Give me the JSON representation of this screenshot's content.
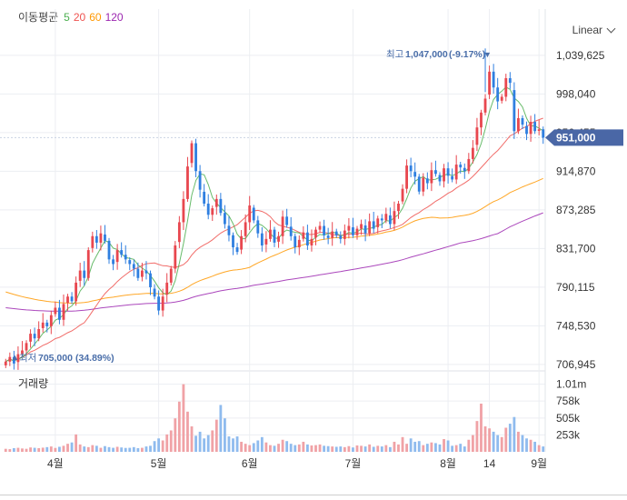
{
  "legend": {
    "label": "이동평균",
    "periods": [
      {
        "text": "5",
        "color": "#4caf50"
      },
      {
        "text": "20",
        "color": "#ef5350"
      },
      {
        "text": "60",
        "color": "#ff9800"
      },
      {
        "text": "120",
        "color": "#9c27b0"
      }
    ]
  },
  "scale_selector": {
    "value": "Linear"
  },
  "price_axis": {
    "ticks": [
      "1,039,625",
      "998,040",
      "956,455",
      "914,870",
      "873,285",
      "831,700",
      "790,115",
      "748,530",
      "706,945"
    ],
    "tick_values": [
      1039625,
      998040,
      956455,
      914870,
      873285,
      831700,
      790115,
      748530,
      706945
    ]
  },
  "current_price": {
    "label": "951,000",
    "value": 951000,
    "color": "#4a67a6"
  },
  "annotations": {
    "high": {
      "prefix": "최고",
      "value": "1,047,000",
      "change": "(-9.17%)",
      "arrow": "▼"
    },
    "low": {
      "prefix": "최저",
      "value": "705,000",
      "change": "(34.89%)",
      "arrow": "▲"
    }
  },
  "volume": {
    "title": "거래량",
    "ticks": [
      "1.01m",
      "758k",
      "505k",
      "253k"
    ],
    "tick_values": [
      1010000,
      758000,
      505000,
      253000
    ]
  },
  "x_axis": {
    "labels": [
      "4월",
      "5월",
      "6월",
      "7월",
      "8월",
      "14",
      "9월"
    ],
    "label_index": [
      12,
      37,
      59,
      84,
      107,
      117,
      129
    ]
  },
  "colors": {
    "up": "#e8474f",
    "down": "#2f7fe0",
    "grid": "#eceef2"
  },
  "chart_data": {
    "type": "candlestick",
    "ylim": [
      700000,
      1060000
    ],
    "series": [
      {
        "name": "5",
        "color": "#4caf50"
      },
      {
        "name": "20",
        "color": "#ef5350"
      },
      {
        "name": "60",
        "color": "#ff9800"
      },
      {
        "name": "120",
        "color": "#9c27b0"
      }
    ],
    "closes": [
      710000,
      715000,
      708000,
      718000,
      722000,
      730000,
      740000,
      735000,
      745000,
      752000,
      748000,
      760000,
      768000,
      755000,
      772000,
      780000,
      775000,
      795000,
      808000,
      800000,
      830000,
      845000,
      838000,
      848000,
      840000,
      820000,
      815000,
      830000,
      825000,
      820000,
      815000,
      810000,
      800000,
      808000,
      805000,
      790000,
      780000,
      765000,
      780000,
      795000,
      810000,
      835000,
      860000,
      885000,
      920000,
      945000,
      915000,
      895000,
      880000,
      868000,
      875000,
      885000,
      870000,
      858000,
      846000,
      833000,
      828000,
      845000,
      860000,
      878000,
      862000,
      848000,
      835000,
      842000,
      852000,
      838000,
      845000,
      866000,
      857000,
      845000,
      833000,
      841000,
      849000,
      835000,
      842000,
      852000,
      856000,
      846000,
      843000,
      850000,
      846000,
      842000,
      851000,
      856000,
      846000,
      853000,
      858000,
      848000,
      861000,
      853000,
      864000,
      862000,
      869000,
      858000,
      872000,
      880000,
      896000,
      921000,
      915000,
      909000,
      893000,
      908000,
      902000,
      916000,
      912000,
      904000,
      918000,
      910000,
      906000,
      922000,
      919000,
      915000,
      928000,
      940000,
      962000,
      978000,
      993000,
      1022000,
      1005000,
      990000,
      995000,
      1015000,
      1010000,
      958000,
      972000,
      965000,
      955000,
      968000,
      958000,
      960000,
      951000
    ],
    "volume": [
      45000,
      40000,
      55000,
      60000,
      50000,
      45000,
      65000,
      60000,
      55000,
      62000,
      70000,
      80000,
      58000,
      75000,
      90000,
      120000,
      140000,
      260000,
      110000,
      80000,
      70000,
      100000,
      90000,
      60000,
      85000,
      70000,
      60000,
      75000,
      65000,
      58000,
      60000,
      70000,
      55000,
      60000,
      80000,
      90000,
      160000,
      200000,
      170000,
      260000,
      320000,
      500000,
      750000,
      1010000,
      600000,
      380000,
      240000,
      300000,
      200000,
      250000,
      320000,
      480000,
      700000,
      500000,
      230000,
      200000,
      230000,
      150000,
      120000,
      100000,
      130000,
      170000,
      220000,
      140000,
      100000,
      90000,
      120000,
      180000,
      160000,
      120000,
      100000,
      110000,
      150000,
      110000,
      95000,
      100000,
      110000,
      90000,
      85000,
      80000,
      75000,
      80000,
      70000,
      85000,
      65000,
      95000,
      90000,
      80000,
      110000,
      75000,
      90000,
      80000,
      100000,
      70000,
      150000,
      110000,
      220000,
      120000,
      200000,
      150000,
      160000,
      100000,
      120000,
      140000,
      130000,
      110000,
      190000,
      170000,
      90000,
      100000,
      120000,
      80000,
      180000,
      250000,
      460000,
      720000,
      380000,
      350000,
      300000,
      250000,
      220000,
      360000,
      420000,
      520000,
      300000,
      250000,
      200000,
      180000,
      150000,
      100000,
      80000
    ],
    "high": {
      "value": 1047000,
      "change_pct": -9.17
    },
    "low": {
      "value": 705000,
      "change_pct": 34.89
    }
  }
}
